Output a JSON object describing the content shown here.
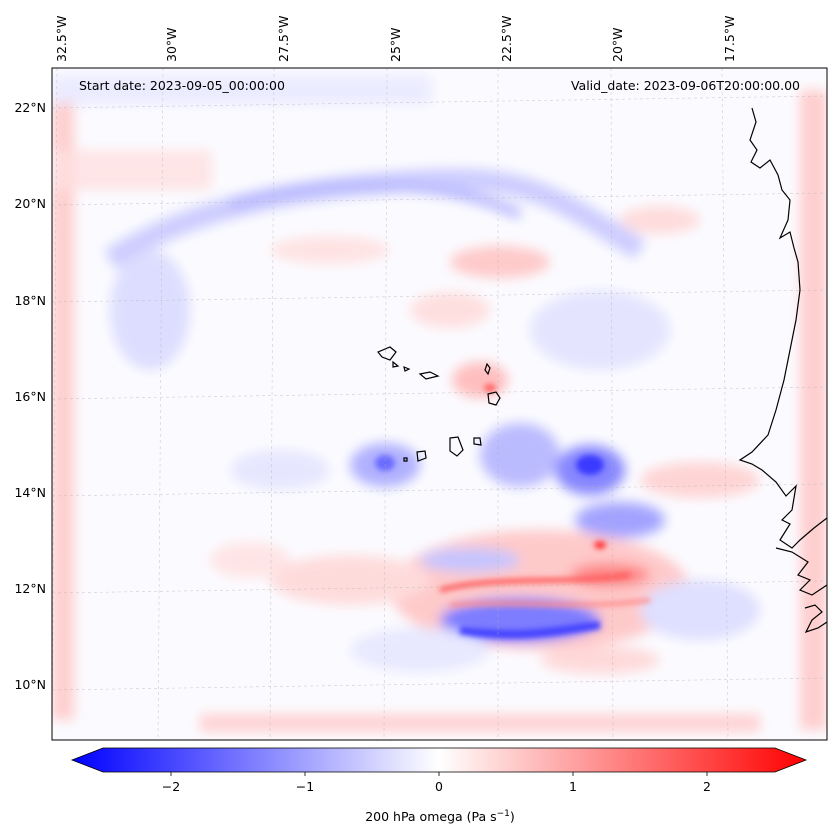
{
  "map": {
    "start_date": "Start date: 2023-09-05_00:00:00",
    "valid_date": "Valid_date: 2023-09-06T20:00:00.00",
    "lon_labels": [
      "32.5°W",
      "30°W",
      "27.5°W",
      "25°W",
      "22.5°W",
      "20°W",
      "17.5°W"
    ],
    "lat_labels": [
      "22°N",
      "20°N",
      "18°N",
      "16°N",
      "14°N",
      "12°N",
      "10°N"
    ],
    "lon_range": [
      -32.7,
      -15.5
    ],
    "lat_range": [
      8.9,
      22.8
    ]
  },
  "colorbar": {
    "label_text": "200 hPa omega (Pa s",
    "label_exp": "−1",
    "label_close": ")",
    "ticks": [
      "−2",
      "−1",
      "0",
      "1",
      "2"
    ],
    "tick_values": [
      -2,
      -1,
      0,
      1,
      2
    ],
    "range": [
      -2.5,
      2.5
    ],
    "extend": "both",
    "colormap": "bwr",
    "low_color": "#0000ff",
    "mid_color": "#ffffff",
    "high_color": "#ff0000"
  }
}
